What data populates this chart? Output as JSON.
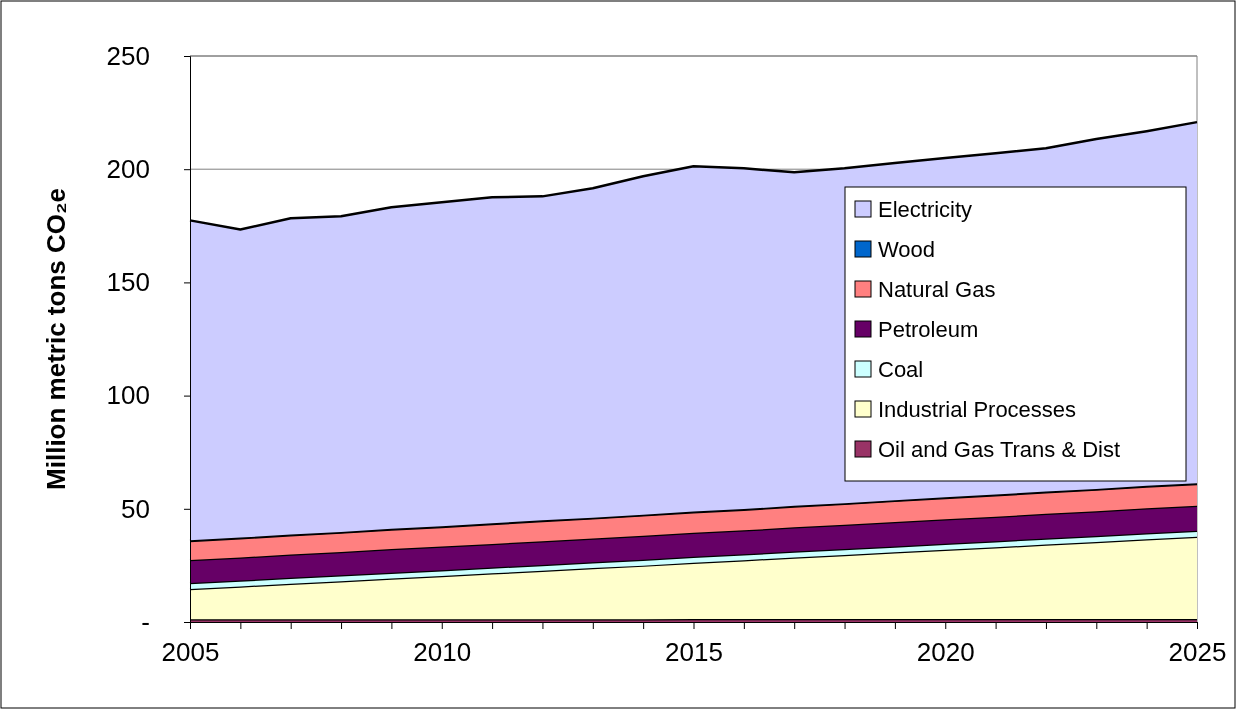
{
  "chart_data": {
    "type": "area",
    "stacked": true,
    "ylabel": "Million metric tons CO₂e",
    "x": [
      2005,
      2006,
      2007,
      2008,
      2009,
      2010,
      2011,
      2012,
      2013,
      2014,
      2015,
      2016,
      2017,
      2018,
      2019,
      2020,
      2021,
      2022,
      2023,
      2024,
      2025
    ],
    "xlim": [
      2005,
      2025
    ],
    "xticks": [
      2005,
      {
        "value": 2006,
        "label": null
      },
      {
        "value": 2007,
        "label": null
      },
      {
        "value": 2008,
        "label": null
      },
      {
        "value": 2009,
        "label": null
      },
      2010,
      {
        "value": 2011,
        "label": null
      },
      {
        "value": 2012,
        "label": null
      },
      {
        "value": 2013,
        "label": null
      },
      {
        "value": 2014,
        "label": null
      },
      2015,
      {
        "value": 2016,
        "label": null
      },
      {
        "value": 2017,
        "label": null
      },
      {
        "value": 2018,
        "label": null
      },
      {
        "value": 2019,
        "label": null
      },
      2020,
      {
        "value": 2021,
        "label": null
      },
      {
        "value": 2022,
        "label": null
      },
      {
        "value": 2023,
        "label": null
      },
      {
        "value": 2024,
        "label": null
      },
      2025
    ],
    "ylim": [
      0,
      250
    ],
    "yticks": [
      {
        "value": 0,
        "label": "-"
      },
      50,
      100,
      150,
      200,
      250
    ],
    "grid": "y",
    "legend": "right",
    "series": [
      {
        "name": "Oil and Gas Trans & Dist",
        "color": "#993366",
        "values": [
          1.2,
          1.2,
          1.2,
          1.2,
          1.2,
          1.2,
          1.2,
          1.2,
          1.2,
          1.2,
          1.3,
          1.3,
          1.3,
          1.3,
          1.3,
          1.3,
          1.3,
          1.3,
          1.3,
          1.3,
          1.3
        ]
      },
      {
        "name": "Industrial Processes",
        "color": "#ffffcc",
        "values": [
          13.4,
          14.5,
          15.7,
          16.8,
          18.0,
          19.1,
          20.3,
          21.4,
          22.6,
          23.7,
          24.9,
          26.0,
          27.2,
          28.3,
          29.5,
          30.6,
          31.7,
          32.9,
          34.0,
          35.2,
          36.3
        ]
      },
      {
        "name": "Coal",
        "color": "#ccffff",
        "values": [
          2.6,
          2.6,
          2.6,
          2.6,
          2.6,
          2.6,
          2.6,
          2.6,
          2.6,
          2.6,
          2.6,
          2.6,
          2.6,
          2.6,
          2.6,
          2.7,
          2.7,
          2.7,
          2.7,
          2.7,
          2.7
        ]
      },
      {
        "name": "Petroleum",
        "color": "#660066",
        "values": [
          10.2,
          10.2,
          10.3,
          10.3,
          10.4,
          10.4,
          10.4,
          10.5,
          10.5,
          10.6,
          10.6,
          10.6,
          10.7,
          10.7,
          10.8,
          10.8,
          10.8,
          10.9,
          10.9,
          11.0,
          11.0
        ]
      },
      {
        "name": "Natural Gas",
        "color": "#ff8080",
        "values": [
          8.4,
          8.5,
          8.5,
          8.6,
          8.7,
          8.7,
          8.8,
          8.9,
          8.9,
          9.0,
          9.1,
          9.1,
          9.2,
          9.3,
          9.3,
          9.4,
          9.5,
          9.5,
          9.6,
          9.7,
          9.7
        ]
      },
      {
        "name": "Wood",
        "color": "#0066cc",
        "values": [
          0.3,
          0.3,
          0.3,
          0.3,
          0.3,
          0.3,
          0.3,
          0.3,
          0.3,
          0.3,
          0.3,
          0.3,
          0.3,
          0.3,
          0.3,
          0.3,
          0.3,
          0.3,
          0.3,
          0.3,
          0.3
        ]
      },
      {
        "name": "Electricity",
        "color": "#ccccff",
        "values": [
          141.3,
          136.1,
          139.7,
          139.4,
          142.0,
          143.1,
          144.0,
          143.1,
          145.5,
          149.5,
          152.5,
          150.5,
          147.3,
          147.9,
          148.9,
          149.8,
          150.7,
          151.7,
          154.5,
          156.6,
          159.5
        ]
      }
    ]
  }
}
